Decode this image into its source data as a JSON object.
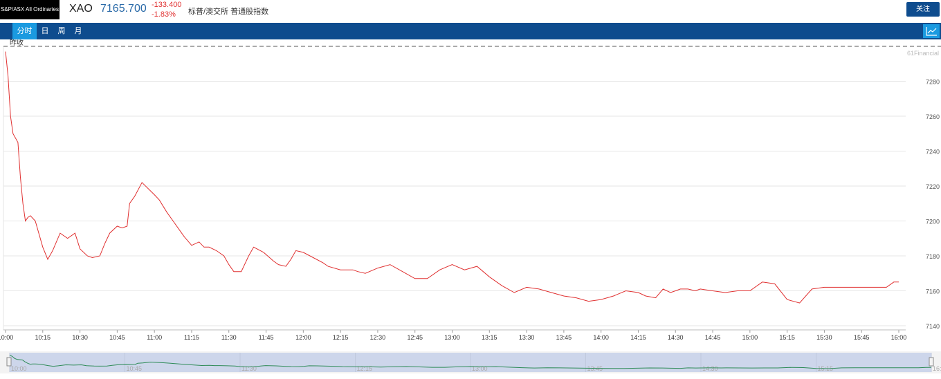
{
  "header": {
    "index_name": "S&P/ASX All Ordinaries",
    "symbol": "XAO",
    "price": "7165.700",
    "change": "-133.400",
    "change_pct": "-1.83%",
    "chinese_name": "标普/澳交所 普通股指数",
    "follow_label": "关注"
  },
  "tabs": [
    {
      "label": "分时",
      "active": true
    },
    {
      "label": "日",
      "active": false
    },
    {
      "label": "周",
      "active": false
    },
    {
      "label": "月",
      "active": false
    }
  ],
  "chart_icon": "line-chart-icon",
  "colors": {
    "brand": "#0e4c8e",
    "accent": "#1a9ae0",
    "price_line": "#e03030",
    "down": "#e03030",
    "nav_line": "#2e8b57",
    "nav_fill": "#cdd6eb"
  },
  "chart_data": {
    "type": "line",
    "prev_close_label": "昨收",
    "source_label": "61Financial",
    "y_ticks": [
      7280,
      7260,
      7240,
      7220,
      7200,
      7180,
      7160,
      7140
    ],
    "ylim": [
      7138,
      7300
    ],
    "x_ticks": [
      "10:00",
      "10:15",
      "10:30",
      "10:45",
      "11:00",
      "11:15",
      "11:30",
      "11:45",
      "12:00",
      "12:15",
      "12:30",
      "12:45",
      "13:00",
      "13:15",
      "13:30",
      "13:45",
      "14:00",
      "14:15",
      "14:30",
      "14:45",
      "15:00",
      "15:15",
      "15:30",
      "15:45",
      "16:00"
    ],
    "navigator_ticks": [
      "10:00",
      "10:45",
      "11:30",
      "12:15",
      "13:00",
      "13:45",
      "14:30",
      "15:15",
      "16:00"
    ],
    "series": [
      {
        "x_minutes": [
          0,
          1,
          2,
          3,
          5,
          6,
          7,
          8,
          9,
          10,
          12,
          15,
          17,
          19,
          22,
          25,
          28,
          30,
          33,
          35,
          38,
          40,
          42,
          45,
          47,
          49,
          50,
          52,
          55,
          60,
          62,
          65,
          68,
          72,
          75,
          78,
          80,
          82,
          85,
          88,
          90,
          92,
          95,
          98,
          100,
          104,
          108,
          110,
          113,
          115,
          117,
          120,
          124,
          128,
          130,
          135,
          140,
          142,
          145,
          150,
          155,
          160,
          165,
          170,
          175,
          180,
          185,
          190,
          195,
          200,
          205,
          210,
          215,
          220,
          225,
          230,
          235,
          240,
          245,
          250,
          255,
          258,
          262,
          265,
          268,
          270,
          272,
          275,
          278,
          280,
          285,
          290,
          295,
          300,
          305,
          310,
          315,
          320,
          325,
          330,
          335,
          340,
          345,
          350,
          355,
          358,
          360
        ],
        "values": [
          7297,
          7283,
          7260,
          7250,
          7245,
          7225,
          7210,
          7200,
          7202,
          7203,
          7200,
          7185,
          7178,
          7183,
          7193,
          7190,
          7193,
          7184,
          7180,
          7179,
          7180,
          7187,
          7193,
          7197,
          7196,
          7197,
          7210,
          7214,
          7222,
          7215,
          7212,
          7205,
          7199,
          7191,
          7186,
          7188,
          7185,
          7185,
          7183,
          7180,
          7175,
          7171,
          7171,
          7180,
          7185,
          7182,
          7177,
          7175,
          7174,
          7178,
          7183,
          7182,
          7179,
          7176,
          7174,
          7172,
          7172,
          7171,
          7170,
          7173,
          7175,
          7171,
          7167,
          7167,
          7172,
          7175,
          7172,
          7174,
          7168,
          7163,
          7159,
          7162,
          7161,
          7159,
          7157,
          7156,
          7154,
          7155,
          7157,
          7160,
          7159,
          7157,
          7156,
          7161,
          7159,
          7160,
          7161,
          7161,
          7160,
          7161,
          7160,
          7159,
          7160,
          7160,
          7165,
          7164,
          7155,
          7153,
          7161,
          7162,
          7162,
          7162,
          7162,
          7162,
          7162,
          7165,
          7165
        ]
      }
    ]
  }
}
